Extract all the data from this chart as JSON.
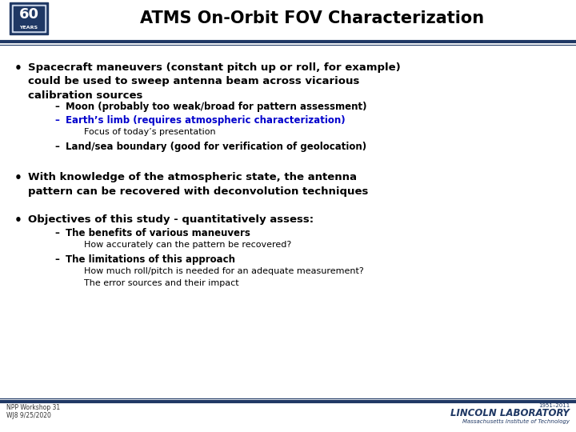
{
  "title": "ATMS On-Orbit FOV Characterization",
  "title_fontsize": 15,
  "title_color": "#000000",
  "background_color": "#ffffff",
  "header_line_color": "#1f3864",
  "footer_line_color": "#1f3864",
  "bullet1_main": "Spacecraft maneuvers (constant pitch up or roll, for example)\ncould be used to sweep antenna beam across vicarious\ncalibration sources",
  "bullet1_sub1": "Moon (probably too weak/broad for pattern assessment)",
  "bullet1_sub2_blue": "Earth’s limb (requires atmospheric characterization)",
  "bullet1_sub2_note": "Focus of today’s presentation",
  "bullet1_sub3": "Land/sea boundary (good for verification of geolocation)",
  "bullet2_main": "With knowledge of the atmospheric state, the antenna\npattern can be recovered with deconvolution techniques",
  "bullet3_main": "Objectives of this study - quantitatively assess:",
  "bullet3_sub1_bold": "The benefits of various maneuvers",
  "bullet3_sub1_note": "How accurately can the pattern be recovered?",
  "bullet3_sub2_bold": "The limitations of this approach",
  "bullet3_sub2_note1": "How much roll/pitch is needed for an adequate measurement?",
  "bullet3_sub2_note2": "The error sources and their impact",
  "footer_left1": "NPP Workshop 31",
  "footer_left2": "WJ8 9/25/2020",
  "footer_right1": "1951–2011",
  "footer_right2": "LINCOLN LABORATORY",
  "footer_right3": "Massachusetts Institute of Technology",
  "text_color": "#000000",
  "blue_color": "#0000cc",
  "navy_color": "#1f3864",
  "main_fs": 9.5,
  "sub_fs": 8.5,
  "note_fs": 8.0
}
